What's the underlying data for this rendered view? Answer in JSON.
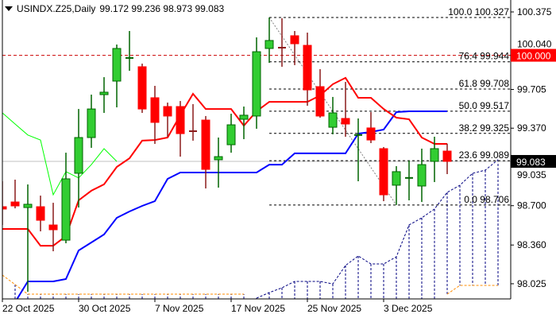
{
  "header": {
    "symbol_timeframe": "USINDX.Z25,Daily",
    "ohlc": "99.172 99.236 98.973 99.083",
    "menu_icon": "triangle-down-icon"
  },
  "chart_data": {
    "type": "candlestick",
    "colors": {
      "bull_body": "#32CD32",
      "bull_edge": "#006400",
      "bear_body": "#FF0000",
      "bear_wick": "#8B1A1A",
      "tenkan": "#FF0000",
      "kijun": "#0000FF",
      "chikou": "#00FF00",
      "span_a": "#000080",
      "span_b": "#FF8C00",
      "fib": "#000000",
      "level": "#CC0000",
      "bid_line": "#C0C0C0"
    },
    "y_ticks": [
      "100.375",
      "100.040",
      "99.705",
      "99.370",
      "99.035",
      "98.700",
      "98.360",
      "98.025"
    ],
    "x_ticks": [
      {
        "date": "22 Oct",
        "label": "22 Oct 2025"
      },
      {
        "date": "30 Oct",
        "label": "30 Oct 2025"
      },
      {
        "date": "7 Nov",
        "label": "7 Nov 2025"
      },
      {
        "date": "17 Nov",
        "label": "17 Nov 2025"
      },
      {
        "date": "25 Nov",
        "label": "25 Nov 2025"
      },
      {
        "date": "3 Dec",
        "label": "3 Dec 2025"
      }
    ],
    "candles": [
      {
        "date": "22 Oct",
        "o": 98.691,
        "h": 98.911,
        "l": 98.533,
        "c": 98.671
      },
      {
        "date": "23 Oct",
        "o": 98.732,
        "h": 98.925,
        "l": 98.677,
        "c": 98.698
      },
      {
        "date": "24 Oct",
        "o": 98.684,
        "h": 98.884,
        "l": 97.956,
        "c": 98.712
      },
      {
        "date": "27 Oct",
        "o": 98.691,
        "h": 98.787,
        "l": 98.478,
        "c": 98.574
      },
      {
        "date": "28 Oct",
        "o": 98.533,
        "h": 98.725,
        "l": 98.306,
        "c": 98.492
      },
      {
        "date": "29 Oct",
        "o": 98.402,
        "h": 99.158,
        "l": 98.375,
        "c": 98.932
      },
      {
        "date": "30 Oct",
        "o": 98.98,
        "h": 99.536,
        "l": 98.684,
        "c": 99.289
      },
      {
        "date": "31 Oct",
        "o": 99.289,
        "h": 99.66,
        "l": 99.2,
        "c": 99.536
      },
      {
        "date": "3 Nov",
        "o": 99.66,
        "h": 99.811,
        "l": 99.502,
        "c": 99.681
      },
      {
        "date": "4 Nov",
        "o": 99.777,
        "h": 100.093,
        "l": 99.55,
        "c": 100.059
      },
      {
        "date": "5 Nov",
        "o": 99.976,
        "h": 100.21,
        "l": 99.866,
        "c": 99.977
      },
      {
        "date": "6 Nov",
        "o": 99.901,
        "h": 99.928,
        "l": 99.502,
        "c": 99.536
      },
      {
        "date": "7 Nov",
        "o": 99.633,
        "h": 99.736,
        "l": 99.234,
        "c": 99.42
      },
      {
        "date": "10 Nov",
        "o": 99.557,
        "h": 99.591,
        "l": 99.296,
        "c": 99.475
      },
      {
        "date": "11 Nov",
        "o": 99.557,
        "h": 99.605,
        "l": 99.124,
        "c": 99.323
      },
      {
        "date": "12 Nov",
        "o": 99.344,
        "h": 99.578,
        "l": 99.262,
        "c": 99.343
      },
      {
        "date": "13 Nov",
        "o": 99.44,
        "h": 99.475,
        "l": 98.849,
        "c": 99.014
      },
      {
        "date": "14 Nov",
        "o": 99.097,
        "h": 99.289,
        "l": 98.856,
        "c": 99.124
      },
      {
        "date": "17 Nov",
        "o": 99.227,
        "h": 99.495,
        "l": 99.158,
        "c": 99.399
      },
      {
        "date": "18 Nov",
        "o": 99.447,
        "h": 99.557,
        "l": 99.275,
        "c": 99.482
      },
      {
        "date": "19 Nov",
        "o": 99.475,
        "h": 100.155,
        "l": 99.365,
        "c": 100.031
      },
      {
        "date": "20 Nov",
        "o": 100.059,
        "h": 100.327,
        "l": 99.935,
        "c": 100.128
      },
      {
        "date": "21 Nov",
        "o": 100.066,
        "h": 100.32,
        "l": 99.901,
        "c": 100.065
      },
      {
        "date": "24 Nov",
        "o": 100.169,
        "h": 100.21,
        "l": 99.915,
        "c": 100.1
      },
      {
        "date": "25 Nov",
        "o": 100.086,
        "h": 100.196,
        "l": 99.564,
        "c": 99.701
      },
      {
        "date": "26 Nov",
        "o": 99.729,
        "h": 99.88,
        "l": 99.461,
        "c": 99.475
      },
      {
        "date": "27 Nov",
        "o": 99.378,
        "h": 99.64,
        "l": 99.317,
        "c": 99.502
      },
      {
        "date": "28 Nov",
        "o": 99.454,
        "h": 99.77,
        "l": 99.296,
        "c": 99.406
      },
      {
        "date": "1 Dec",
        "o": 99.31,
        "h": 99.454,
        "l": 98.911,
        "c": 99.311
      },
      {
        "date": "2 Dec",
        "o": 99.372,
        "h": 99.509,
        "l": 99.241,
        "c": 99.268
      },
      {
        "date": "3 Dec",
        "o": 99.193,
        "h": 99.207,
        "l": 98.739,
        "c": 98.794
      },
      {
        "date": "4 Dec",
        "o": 98.877,
        "h": 99.042,
        "l": 98.706,
        "c": 98.994
      },
      {
        "date": "5 Dec",
        "o": 98.939,
        "h": 99.09,
        "l": 98.746,
        "c": 98.94
      },
      {
        "date": "8 Dec",
        "o": 98.87,
        "h": 99.193,
        "l": 98.732,
        "c": 99.055
      },
      {
        "date": "9 Dec",
        "o": 99.083,
        "h": 99.296,
        "l": 98.904,
        "c": 99.193
      },
      {
        "date": "10 Dec",
        "o": 99.172,
        "h": 99.236,
        "l": 98.973,
        "c": 99.083
      }
    ],
    "ichimoku": {
      "tenkan": [
        98.499,
        98.499,
        98.499,
        98.354,
        98.354,
        98.437,
        98.746,
        98.829,
        98.884,
        99.035,
        99.11,
        99.262,
        99.268,
        99.289,
        99.482,
        99.667,
        99.536,
        99.536,
        99.536,
        99.392,
        99.516,
        99.598,
        99.598,
        99.598,
        99.598,
        99.653,
        99.75,
        99.805,
        99.633,
        99.633,
        99.536,
        99.461,
        99.447,
        99.289,
        99.234,
        99.234
      ],
      "kijun": [
        97.66,
        97.866,
        98.045,
        98.045,
        98.045,
        98.066,
        98.313,
        98.382,
        98.451,
        98.595,
        98.65,
        98.698,
        98.739,
        98.932,
        98.987,
        98.987,
        98.987,
        98.987,
        98.987,
        98.987,
        98.987,
        99.055,
        99.055,
        99.152,
        99.152,
        99.152,
        99.152,
        99.152,
        99.323,
        99.337,
        99.358,
        99.509,
        99.516,
        99.516,
        99.516,
        99.516
      ],
      "chikou_shift": 26,
      "future_dates": [
        "11 Dec",
        "12 Dec",
        "15 Dec",
        "16 Dec"
      ],
      "span_a": [
        null,
        null,
        null,
        null,
        null,
        null,
        null,
        null,
        null,
        null,
        null,
        null,
        null,
        null,
        null,
        null,
        null,
        null,
        null,
        null,
        97.901,
        97.949,
        97.99,
        98.045,
        98.045,
        98.045,
        98.024,
        98.183,
        98.265,
        98.196,
        98.196,
        98.258,
        98.533,
        98.595,
        98.671,
        98.815,
        98.877,
        98.98,
        99.007,
        99.097
      ],
      "span_b": [
        98.1,
        98.018,
        97.935,
        97.935,
        97.935,
        97.935,
        97.935,
        97.935,
        97.935,
        97.935,
        97.935,
        97.935,
        97.935,
        97.935,
        97.935,
        97.935,
        97.935,
        97.935,
        97.935,
        97.935,
        null,
        null,
        null,
        null,
        null,
        null,
        null,
        null,
        null,
        null,
        null,
        null,
        null,
        null,
        null,
        97.935,
        98.011,
        98.011,
        98.011,
        98.011
      ]
    },
    "fibonacci": {
      "from_date": "20 Nov",
      "to_date": "4 Dec",
      "high": 100.327,
      "low": 98.706,
      "levels": [
        {
          "label": "100.0 100.327",
          "price": 100.327
        },
        {
          "label": "76.4 99.944",
          "price": 99.944
        },
        {
          "label": "61.8 99.708",
          "price": 99.708
        },
        {
          "label": "50.0 99.517",
          "price": 99.517
        },
        {
          "label": "38.2 99.325",
          "price": 99.325
        },
        {
          "label": "23.6 99.089",
          "price": 99.089
        },
        {
          "label": "0.0 98.706",
          "price": 98.706
        }
      ]
    },
    "price_level": {
      "price": 100.0,
      "label": "100.000"
    },
    "bid": {
      "price": 99.083,
      "label": "99.083"
    },
    "grid": false
  }
}
